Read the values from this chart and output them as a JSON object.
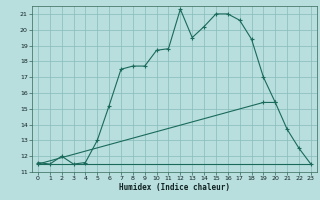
{
  "title": "",
  "xlabel": "Humidex (Indice chaleur)",
  "bg_color": "#b8dede",
  "grid_color": "#88bbbb",
  "line_color": "#1a6a5a",
  "xlim": [
    -0.5,
    23.5
  ],
  "ylim": [
    11.0,
    21.5
  ],
  "yticks": [
    11,
    12,
    13,
    14,
    15,
    16,
    17,
    18,
    19,
    20,
    21
  ],
  "xticks": [
    0,
    1,
    2,
    3,
    4,
    5,
    6,
    7,
    8,
    9,
    10,
    11,
    12,
    13,
    14,
    15,
    16,
    17,
    18,
    19,
    20,
    21,
    22,
    23
  ],
  "curve1_x": [
    0,
    1,
    2,
    3,
    4,
    5,
    6,
    7,
    8,
    9,
    10,
    11,
    12,
    13,
    14,
    15,
    16,
    17,
    18,
    19,
    20,
    21,
    22,
    23
  ],
  "curve1_y": [
    11.6,
    11.5,
    12.0,
    11.5,
    11.6,
    13.0,
    15.2,
    17.5,
    17.7,
    17.7,
    18.7,
    18.8,
    21.3,
    19.5,
    20.2,
    21.0,
    21.0,
    20.6,
    19.4,
    17.0,
    15.4,
    13.7,
    12.5,
    11.5
  ],
  "curve2_x": [
    0,
    23
  ],
  "curve2_y": [
    11.5,
    11.5
  ],
  "curve3_x": [
    0,
    19,
    20
  ],
  "curve3_y": [
    11.5,
    15.4,
    15.4
  ]
}
